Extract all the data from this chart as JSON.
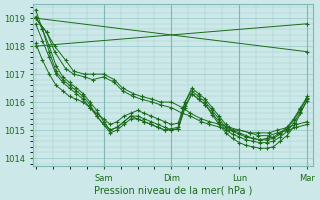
{
  "title": "Pression niveau de la mer( hPa )",
  "ylabel_ticks": [
    1014,
    1015,
    1016,
    1017,
    1018,
    1019
  ],
  "ylim": [
    1013.7,
    1019.5
  ],
  "xlim": [
    -0.01,
    1.02
  ],
  "bg_color": "#cce8e8",
  "grid_color": "#a0cccc",
  "line_color": "#1a6b1a",
  "marker_color": "#1a6b1a",
  "day_labels": [
    "Sam",
    "Dim",
    "Lun",
    "Mar"
  ],
  "day_positions": [
    0.25,
    0.5,
    0.75,
    1.0
  ],
  "series": [
    {
      "x": [
        0.0,
        0.04,
        0.07,
        0.11,
        0.14,
        0.18,
        0.21,
        0.25,
        0.29,
        0.32,
        0.36,
        0.39,
        0.43,
        0.46,
        0.5,
        0.54,
        0.57,
        0.61,
        0.64,
        0.68,
        0.71,
        0.75,
        0.79,
        0.82,
        0.86,
        0.89,
        0.93,
        0.96,
        1.0
      ],
      "y": [
        1019.0,
        1018.5,
        1018.0,
        1017.5,
        1017.1,
        1017.0,
        1017.0,
        1017.0,
        1016.8,
        1016.5,
        1016.3,
        1016.2,
        1016.1,
        1016.0,
        1016.0,
        1015.8,
        1015.6,
        1015.4,
        1015.3,
        1015.2,
        1015.1,
        1015.0,
        1014.9,
        1014.9,
        1014.9,
        1015.0,
        1015.1,
        1015.2,
        1015.3
      ]
    },
    {
      "x": [
        0.0,
        0.04,
        0.07,
        0.11,
        0.14,
        0.18,
        0.21,
        0.25,
        0.29,
        0.32,
        0.36,
        0.39,
        0.43,
        0.46,
        0.5,
        0.54,
        0.57,
        0.61,
        0.64,
        0.68,
        0.71,
        0.75,
        0.79,
        0.82,
        0.86,
        0.89,
        0.93,
        0.96,
        1.0
      ],
      "y": [
        1019.0,
        1018.5,
        1017.8,
        1017.2,
        1017.0,
        1016.9,
        1016.8,
        1016.9,
        1016.7,
        1016.4,
        1016.2,
        1016.1,
        1016.0,
        1015.9,
        1015.8,
        1015.6,
        1015.5,
        1015.3,
        1015.2,
        1015.1,
        1015.0,
        1015.0,
        1014.9,
        1014.8,
        1014.8,
        1014.9,
        1015.0,
        1015.1,
        1015.2
      ]
    },
    {
      "x": [
        0.0,
        0.025,
        0.05,
        0.075,
        0.1,
        0.125,
        0.15,
        0.175,
        0.2,
        0.225,
        0.25,
        0.275,
        0.3,
        0.325,
        0.35,
        0.375,
        0.4,
        0.425,
        0.45,
        0.475,
        0.5,
        0.525,
        0.55,
        0.575,
        0.6,
        0.625,
        0.65,
        0.675,
        0.7,
        0.725,
        0.75,
        0.775,
        0.8,
        0.825,
        0.85,
        0.875,
        0.9,
        0.925,
        0.95,
        0.975,
        1.0
      ],
      "y": [
        1019.05,
        1018.6,
        1018.0,
        1017.3,
        1016.9,
        1016.7,
        1016.5,
        1016.3,
        1016.0,
        1015.7,
        1015.3,
        1015.0,
        1015.1,
        1015.3,
        1015.5,
        1015.4,
        1015.3,
        1015.2,
        1015.1,
        1015.0,
        1015.05,
        1015.1,
        1016.0,
        1016.5,
        1016.3,
        1016.1,
        1015.8,
        1015.5,
        1015.2,
        1015.0,
        1014.9,
        1014.8,
        1014.7,
        1014.65,
        1014.7,
        1014.75,
        1014.9,
        1015.1,
        1015.4,
        1015.8,
        1016.2
      ]
    },
    {
      "x": [
        0.0,
        0.025,
        0.05,
        0.075,
        0.1,
        0.125,
        0.15,
        0.175,
        0.2,
        0.225,
        0.25,
        0.275,
        0.3,
        0.325,
        0.35,
        0.375,
        0.4,
        0.425,
        0.45,
        0.475,
        0.5,
        0.525,
        0.55,
        0.575,
        0.6,
        0.625,
        0.65,
        0.675,
        0.7,
        0.725,
        0.75,
        0.775,
        0.8,
        0.825,
        0.85,
        0.875,
        0.9,
        0.925,
        0.95,
        0.975,
        1.0
      ],
      "y": [
        1018.8,
        1018.2,
        1017.6,
        1017.0,
        1016.7,
        1016.5,
        1016.3,
        1016.1,
        1015.8,
        1015.5,
        1015.2,
        1015.0,
        1015.1,
        1015.3,
        1015.5,
        1015.5,
        1015.4,
        1015.3,
        1015.2,
        1015.1,
        1015.0,
        1015.05,
        1015.85,
        1016.3,
        1016.1,
        1015.9,
        1015.6,
        1015.3,
        1015.0,
        1014.85,
        1014.75,
        1014.65,
        1014.6,
        1014.55,
        1014.55,
        1014.6,
        1014.75,
        1014.95,
        1015.25,
        1015.65,
        1016.05
      ]
    },
    {
      "x": [
        0.0,
        0.025,
        0.05,
        0.075,
        0.1,
        0.125,
        0.15,
        0.175,
        0.2,
        0.225,
        0.25,
        0.275,
        0.3,
        0.325,
        0.35,
        0.375,
        0.4,
        0.425,
        0.45,
        0.475,
        0.5,
        0.525,
        0.55,
        0.575,
        0.6,
        0.625,
        0.65,
        0.675,
        0.7,
        0.725,
        0.75,
        0.775,
        0.8,
        0.825,
        0.85,
        0.875,
        0.9,
        0.925,
        0.95,
        0.975,
        1.0
      ],
      "y": [
        1019.3,
        1018.6,
        1017.8,
        1017.1,
        1016.8,
        1016.6,
        1016.4,
        1016.2,
        1015.9,
        1015.5,
        1015.2,
        1014.9,
        1015.0,
        1015.2,
        1015.4,
        1015.4,
        1015.3,
        1015.2,
        1015.1,
        1015.0,
        1015.0,
        1015.05,
        1015.8,
        1016.3,
        1016.1,
        1015.9,
        1015.55,
        1015.2,
        1014.9,
        1014.7,
        1014.55,
        1014.45,
        1014.4,
        1014.35,
        1014.35,
        1014.4,
        1014.6,
        1014.8,
        1015.1,
        1015.6,
        1016.1
      ]
    },
    {
      "x": [
        0.0,
        0.025,
        0.05,
        0.075,
        0.1,
        0.125,
        0.15,
        0.175,
        0.2,
        0.225,
        0.25,
        0.275,
        0.3,
        0.325,
        0.35,
        0.375,
        0.4,
        0.425,
        0.45,
        0.475,
        0.5,
        0.525,
        0.55,
        0.575,
        0.6,
        0.625,
        0.65,
        0.675,
        0.7,
        0.725,
        0.75,
        0.775,
        0.8,
        0.825,
        0.85,
        0.875,
        0.9,
        0.925,
        0.95,
        0.975,
        1.0
      ],
      "y": [
        1018.1,
        1017.5,
        1017.0,
        1016.6,
        1016.4,
        1016.2,
        1016.1,
        1016.0,
        1015.8,
        1015.6,
        1015.4,
        1015.2,
        1015.3,
        1015.5,
        1015.6,
        1015.7,
        1015.6,
        1015.5,
        1015.4,
        1015.3,
        1015.2,
        1015.25,
        1016.0,
        1016.4,
        1016.2,
        1016.0,
        1015.7,
        1015.4,
        1015.1,
        1014.95,
        1014.85,
        1014.75,
        1014.7,
        1014.65,
        1014.65,
        1014.7,
        1014.85,
        1015.05,
        1015.35,
        1015.75,
        1016.15
      ]
    },
    {
      "x": [
        0.0,
        1.0
      ],
      "y": [
        1019.0,
        1017.8
      ]
    },
    {
      "x": [
        0.0,
        1.0
      ],
      "y": [
        1018.0,
        1018.8
      ]
    }
  ]
}
